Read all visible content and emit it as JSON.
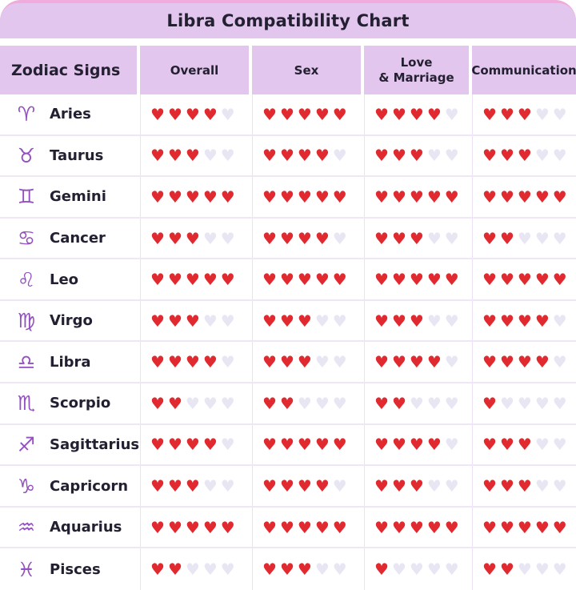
{
  "title": "Libra Compatibility Chart",
  "header": {
    "zodiac": "Zodiac Signs",
    "overall": "Overall",
    "sex": "Sex",
    "love_marriage": "Love\n& Marriage",
    "communication": "Communication"
  },
  "heart_glyph": "♥",
  "max_hearts": 5,
  "rows": [
    {
      "sign": "Aries",
      "symbol": "♈",
      "overall": 4,
      "sex": 5,
      "love_marriage": 4,
      "communication": 3
    },
    {
      "sign": "Taurus",
      "symbol": "♉",
      "overall": 3,
      "sex": 4,
      "love_marriage": 3,
      "communication": 3
    },
    {
      "sign": "Gemini",
      "symbol": "♊",
      "overall": 5,
      "sex": 5,
      "love_marriage": 5,
      "communication": 5
    },
    {
      "sign": "Cancer",
      "symbol": "♋",
      "overall": 3,
      "sex": 4,
      "love_marriage": 3,
      "communication": 2
    },
    {
      "sign": "Leo",
      "symbol": "♌",
      "overall": 5,
      "sex": 5,
      "love_marriage": 5,
      "communication": 5
    },
    {
      "sign": "Virgo",
      "symbol": "♍",
      "overall": 3,
      "sex": 3,
      "love_marriage": 3,
      "communication": 4
    },
    {
      "sign": "Libra",
      "symbol": "♎",
      "overall": 4,
      "sex": 3,
      "love_marriage": 4,
      "communication": 4
    },
    {
      "sign": "Scorpio",
      "symbol": "♏",
      "overall": 2,
      "sex": 2,
      "love_marriage": 2,
      "communication": 1
    },
    {
      "sign": "Sagittarius",
      "symbol": "♐",
      "overall": 4,
      "sex": 5,
      "love_marriage": 4,
      "communication": 3
    },
    {
      "sign": "Capricorn",
      "symbol": "♑",
      "overall": 3,
      "sex": 4,
      "love_marriage": 3,
      "communication": 3
    },
    {
      "sign": "Aquarius",
      "symbol": "♒",
      "overall": 5,
      "sex": 5,
      "love_marriage": 5,
      "communication": 5
    },
    {
      "sign": "Pisces",
      "symbol": "♓",
      "overall": 2,
      "sex": 3,
      "love_marriage": 1,
      "communication": 2
    }
  ],
  "colors": {
    "header_bg": "#e3c6ee",
    "top_edge": "#f0abdc",
    "heart_filled": "#e02a30",
    "heart_empty": "#e9e6f4",
    "symbol_purple": "#9351c0",
    "text_dark": "#232032"
  },
  "chart_data": {
    "type": "table",
    "title": "Libra Compatibility Chart",
    "columns": [
      "Zodiac Signs",
      "Overall",
      "Sex",
      "Love & Marriage",
      "Communication"
    ],
    "rating_scale": "hearts out of 5",
    "max_rating": 5,
    "rows": [
      [
        "Aries",
        4,
        5,
        4,
        3
      ],
      [
        "Taurus",
        3,
        4,
        3,
        3
      ],
      [
        "Gemini",
        5,
        5,
        5,
        5
      ],
      [
        "Cancer",
        3,
        4,
        3,
        2
      ],
      [
        "Leo",
        5,
        5,
        5,
        5
      ],
      [
        "Virgo",
        3,
        3,
        3,
        4
      ],
      [
        "Libra",
        4,
        3,
        4,
        4
      ],
      [
        "Scorpio",
        2,
        2,
        2,
        1
      ],
      [
        "Sagittarius",
        4,
        5,
        4,
        3
      ],
      [
        "Capricorn",
        3,
        4,
        3,
        3
      ],
      [
        "Aquarius",
        5,
        5,
        5,
        5
      ],
      [
        "Pisces",
        2,
        3,
        1,
        2
      ]
    ]
  }
}
